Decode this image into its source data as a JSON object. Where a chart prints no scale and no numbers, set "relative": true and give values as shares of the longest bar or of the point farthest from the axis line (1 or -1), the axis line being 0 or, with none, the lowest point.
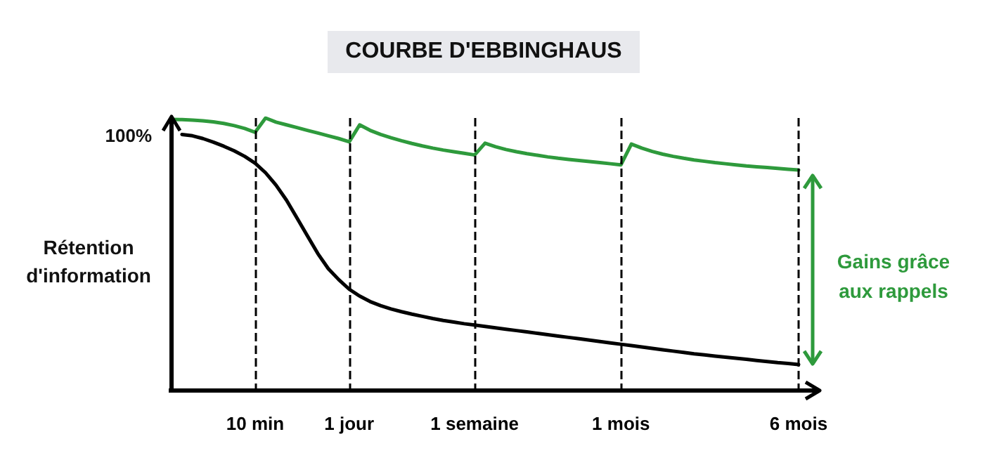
{
  "chart_data": {
    "type": "line",
    "title": "COURBE D'EBBINGHAUS",
    "ylabel": "Rétention d'information",
    "relative": true,
    "grid": false,
    "categories": [
      null,
      null,
      null,
      null,
      null,
      null,
      null,
      null,
      "10 min",
      null,
      null,
      null,
      null,
      null,
      null,
      null,
      null,
      "1 jour",
      null,
      null,
      null,
      null,
      null,
      null,
      null,
      null,
      null,
      null,
      null,
      "1 semaine",
      null,
      null,
      null,
      null,
      null,
      null,
      null,
      null,
      null,
      null,
      null,
      null,
      null,
      "1 mois",
      null,
      null,
      null,
      null,
      null,
      null,
      null,
      null,
      null,
      null,
      null,
      null,
      null,
      null,
      null,
      null,
      "6 mois"
    ],
    "series": [
      {
        "color": "#000000",
        "values": [
          null,
          0.94,
          0.935,
          0.925,
          0.912,
          0.897,
          0.88,
          0.86,
          0.835,
          0.8,
          0.755,
          0.7,
          0.635,
          0.57,
          0.505,
          0.45,
          0.41,
          0.375,
          0.35,
          0.33,
          0.315,
          0.303,
          0.293,
          0.284,
          0.276,
          0.268,
          0.261,
          0.255,
          0.249,
          0.244,
          0.239,
          0.234,
          0.229,
          0.224,
          0.219,
          0.214,
          0.209,
          0.204,
          0.199,
          0.194,
          0.189,
          0.184,
          0.179,
          0.174,
          0.169,
          0.164,
          0.159,
          0.154,
          0.149,
          0.144,
          0.139,
          0.135,
          0.131,
          0.127,
          0.123,
          0.119,
          0.115,
          0.111,
          0.107,
          0.104,
          0.1
        ]
      },
      {
        "color": "#2e9a3c",
        "values": [
          0.995,
          0.994,
          0.992,
          0.99,
          0.986,
          0.98,
          0.972,
          0.962,
          0.948,
          1,
          0.985,
          0.975,
          0.965,
          0.955,
          0.945,
          0.935,
          0.925,
          0.913,
          0.975,
          0.955,
          0.94,
          0.928,
          0.917,
          0.907,
          0.898,
          0.89,
          0.883,
          0.877,
          0.871,
          0.865,
          0.908,
          0.895,
          0.885,
          0.877,
          0.87,
          0.864,
          0.858,
          0.853,
          0.849,
          0.845,
          0.841,
          0.837,
          0.833,
          0.829,
          0.905,
          0.89,
          0.878,
          0.868,
          0.86,
          0.853,
          0.847,
          0.842,
          0.837,
          0.833,
          0.829,
          0.825,
          0.822,
          0.819,
          0.816,
          0.813,
          0.81
        ]
      }
    ],
    "ref_lines": [
      {
        "axis": "x",
        "value": "10 min",
        "color": "#000000",
        "line_style": "dashed"
      },
      {
        "axis": "x",
        "value": "1 jour",
        "color": "#000000",
        "line_style": "dashed"
      },
      {
        "axis": "x",
        "value": "1 semaine",
        "color": "#000000",
        "line_style": "dashed"
      },
      {
        "axis": "x",
        "value": "1 mois",
        "color": "#000000",
        "line_style": "dashed"
      },
      {
        "axis": "x",
        "value": "6 mois",
        "color": "#000000",
        "line_style": "dashed"
      }
    ],
    "annotations": [
      "100%",
      "Gains grâce aux rappels"
    ]
  }
}
